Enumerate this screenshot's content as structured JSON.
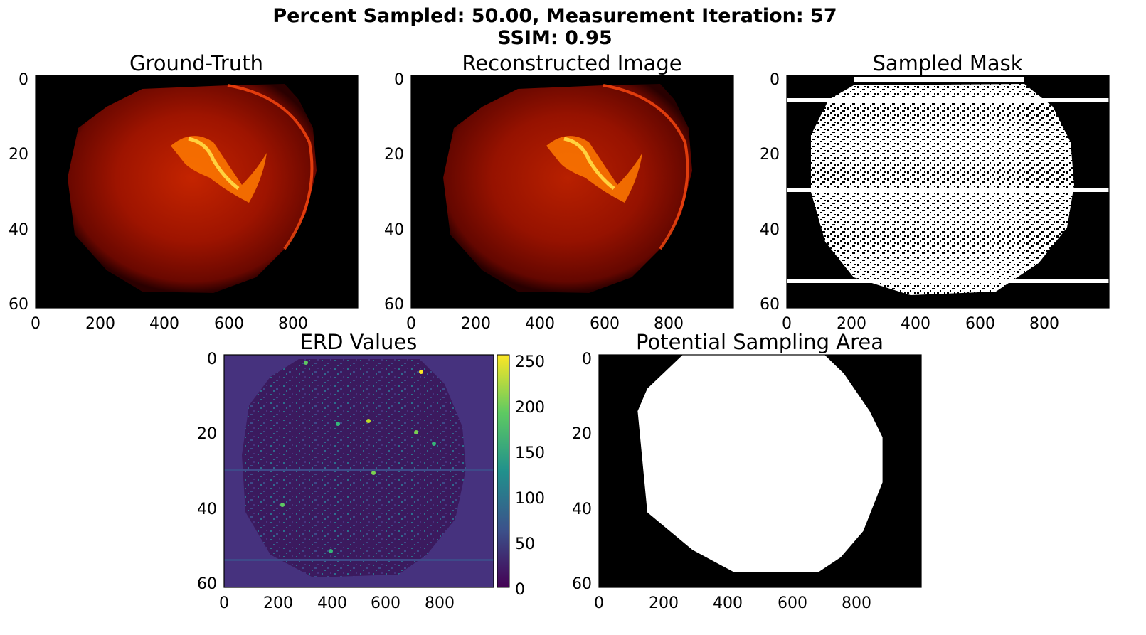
{
  "figure": {
    "title_line1": "Percent Sampled: 50.00, Measurement Iteration: 57",
    "title_line2": "SSIM: 0.95"
  },
  "chart_data": [
    {
      "type": "heatmap",
      "title": "Ground-Truth",
      "colormap": "hot",
      "xlim": [
        0,
        1000
      ],
      "ylim": [
        62,
        0
      ],
      "x_ticks": [
        "0",
        "200",
        "400",
        "600",
        "800"
      ],
      "y_ticks": [
        "0",
        "20",
        "40",
        "60"
      ],
      "content": "hot-colormap intensity image of a circular sample with bright diagonal structure near the center"
    },
    {
      "type": "heatmap",
      "title": "Reconstructed Image",
      "colormap": "hot",
      "xlim": [
        0,
        1000
      ],
      "ylim": [
        62,
        0
      ],
      "x_ticks": [
        "0",
        "200",
        "400",
        "600",
        "800"
      ],
      "y_ticks": [
        "0",
        "20",
        "40",
        "60"
      ],
      "content": "reconstruction of the ground-truth image"
    },
    {
      "type": "heatmap",
      "title": "Sampled Mask",
      "colormap": "gray",
      "xlim": [
        0,
        1000
      ],
      "ylim": [
        62,
        0
      ],
      "x_ticks": [
        "0",
        "200",
        "400",
        "600",
        "800"
      ],
      "y_ticks": [
        "0",
        "20",
        "40",
        "60"
      ],
      "content": "binary mask of sampled locations (white = sampled)"
    },
    {
      "type": "heatmap",
      "title": "ERD Values",
      "colormap": "viridis",
      "xlim": [
        0,
        1000
      ],
      "ylim": [
        62,
        0
      ],
      "x_ticks": [
        "0",
        "200",
        "400",
        "600",
        "800"
      ],
      "y_ticks": [
        "0",
        "20",
        "40",
        "60"
      ],
      "colorbar_range": [
        0,
        255
      ],
      "colorbar_ticks": [
        "0",
        "50",
        "100",
        "150",
        "200",
        "250"
      ]
    },
    {
      "type": "heatmap",
      "title": "Potential Sampling Area",
      "colormap": "gray",
      "xlim": [
        0,
        1000
      ],
      "ylim": [
        62,
        0
      ],
      "x_ticks": [
        "0",
        "200",
        "400",
        "600",
        "800"
      ],
      "y_ticks": [
        "0",
        "20",
        "40",
        "60"
      ],
      "region_outline": [
        [
          260,
          0
        ],
        [
          700,
          0
        ],
        [
          760,
          5
        ],
        [
          840,
          15
        ],
        [
          880,
          22
        ],
        [
          880,
          34
        ],
        [
          820,
          47
        ],
        [
          750,
          54
        ],
        [
          680,
          58
        ],
        [
          420,
          58
        ],
        [
          290,
          52
        ],
        [
          150,
          42
        ],
        [
          120,
          15
        ],
        [
          150,
          9
        ]
      ]
    }
  ]
}
